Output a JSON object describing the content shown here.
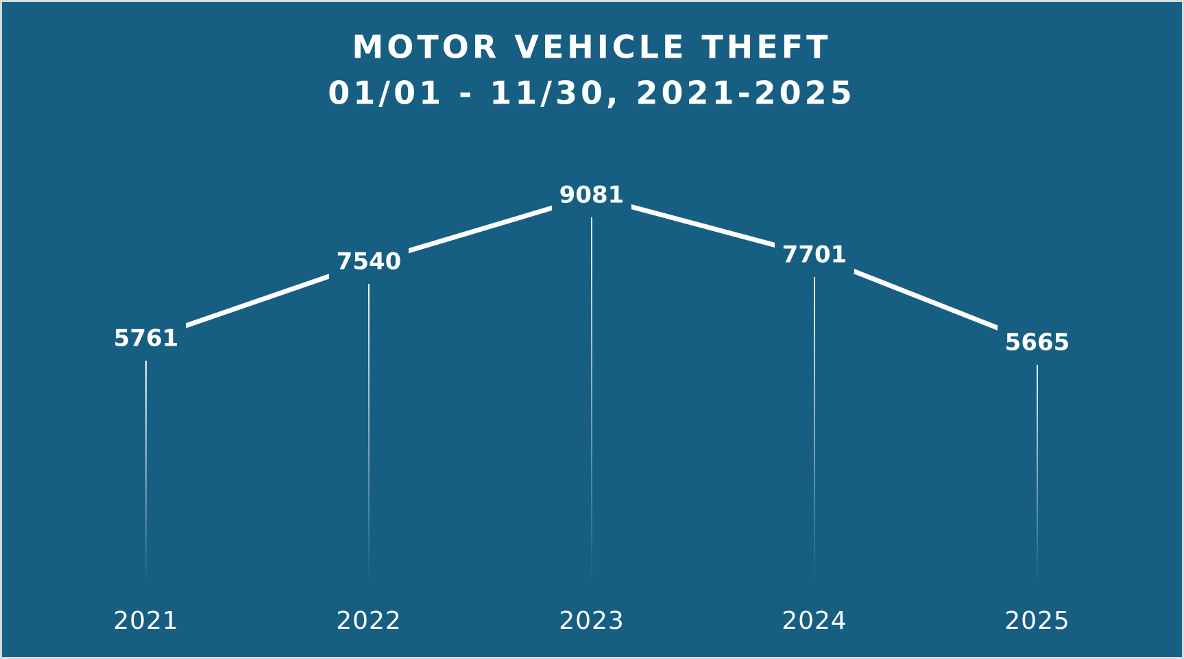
{
  "chart_data": {
    "type": "line",
    "title": "MOTOR VEHICLE THEFT",
    "subtitle": "01/01 - 11/30, 2021-2025",
    "categories": [
      "2021",
      "2022",
      "2023",
      "2024",
      "2025"
    ],
    "values": [
      5761,
      7540,
      9081,
      7701,
      5665
    ],
    "color": "#ffffff"
  }
}
